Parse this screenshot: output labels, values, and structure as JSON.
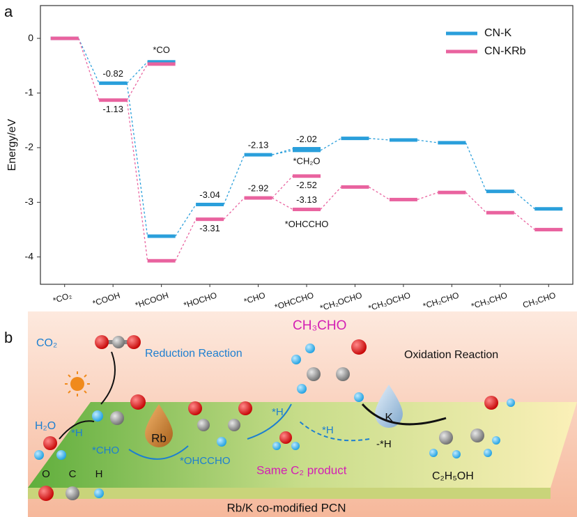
{
  "chart_data": {
    "type": "energy_level",
    "panel_label": "a",
    "ylabel": "Energy/eV",
    "categories": [
      "*CO₂",
      "*COOH",
      "*HCOOH",
      "*HOCHO",
      "*CHO",
      "*OHCCHO",
      "*CH₂OCHO",
      "*CH₃OCHO",
      "*CH₂CHO",
      "*CH₃CHO",
      "CH₃CHO"
    ],
    "ylim": [
      -4.5,
      0.6
    ],
    "yticks": [
      0,
      -1,
      -2,
      -3,
      -4
    ],
    "legend": "upper right",
    "branch_names": [
      null,
      null,
      "*CO",
      null,
      null,
      "*CH₂O",
      null,
      null,
      null,
      null,
      null
    ],
    "annotation": "*OHCCHO",
    "series": [
      {
        "name": "CN-K",
        "color": "#2a9fdb",
        "values": [
          0,
          -0.82,
          -3.62,
          -3.04,
          -2.13,
          -2.05,
          -1.83,
          -1.86,
          -1.91,
          -2.8,
          -3.12
        ],
        "value_labels": [
          null,
          "-0.82",
          null,
          "-3.04",
          "-2.13",
          null,
          null,
          null,
          null,
          null,
          null
        ],
        "branch_values": [
          null,
          null,
          -0.43,
          null,
          null,
          -2.02,
          null,
          null,
          null,
          null,
          null
        ],
        "branch_labels": [
          null,
          null,
          null,
          null,
          null,
          "-2.02",
          null,
          null,
          null,
          null,
          null
        ]
      },
      {
        "name": "CN-KRb",
        "color": "#e9639f",
        "values": [
          0,
          -1.13,
          -4.07,
          -3.31,
          -2.92,
          -3.13,
          -2.72,
          -2.95,
          -2.82,
          -3.19,
          -3.5
        ],
        "value_labels": [
          null,
          "-1.13",
          null,
          "-3.31",
          "-2.92",
          "-3.13",
          null,
          null,
          null,
          null,
          null
        ],
        "branch_values": [
          null,
          null,
          -0.47,
          null,
          null,
          -2.52,
          null,
          null,
          null,
          null,
          null
        ],
        "branch_labels": [
          null,
          null,
          null,
          null,
          null,
          "-2.52",
          null,
          null,
          null,
          null,
          null
        ]
      }
    ]
  },
  "scheme": {
    "panel_label": "b",
    "co2": "CO₂",
    "reduction": "Reduction Reaction",
    "product": "CH₃CHO",
    "oxidation": "Oxidation Reaction",
    "water": "H₂O",
    "h1": "*H",
    "cho": "*CHO",
    "rb": "Rb",
    "ohccho": "*OHCCHO",
    "h2": "*H",
    "h3": "*H",
    "minus_h": "-*H",
    "k": "K",
    "same_product": "Same C₂ product",
    "ethanol": "C₂H₅OH",
    "legend_o": "O",
    "legend_c": "C",
    "legend_h": "H",
    "substrate": "Rb/K co-modified PCN"
  }
}
